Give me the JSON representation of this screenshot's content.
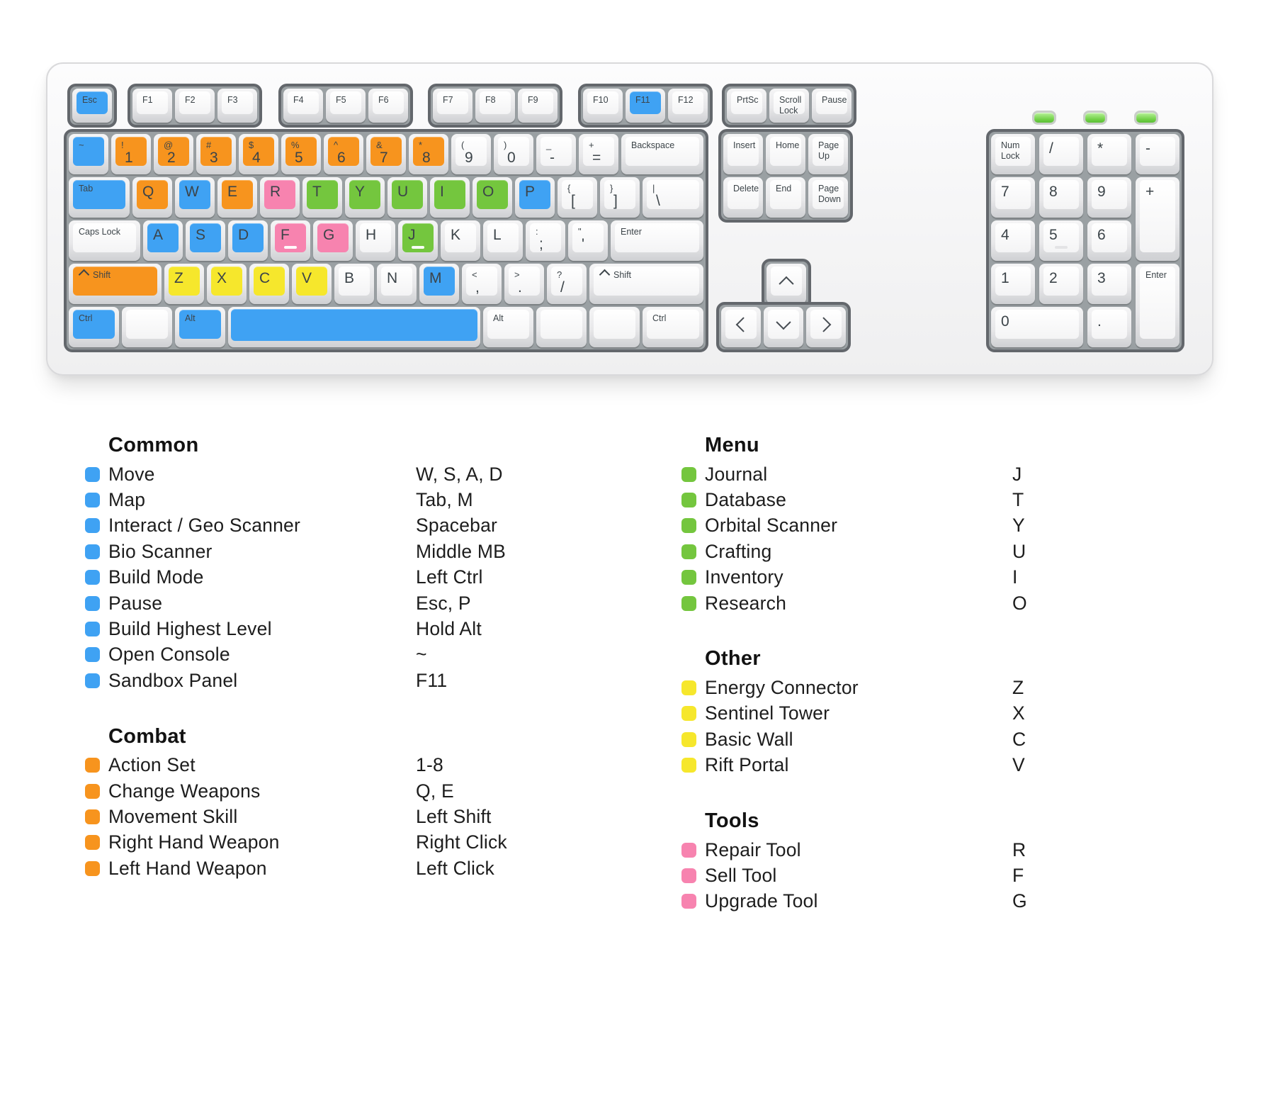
{
  "palette": {
    "common": "#3fa2f3",
    "combat": "#f7941e",
    "menu": "#74c63e",
    "other": "#f6e72c",
    "tools": "#f783af",
    "key_text": "#3c4449",
    "plate_gray": "#9aa0a3",
    "led_green": "#6fcf45"
  },
  "keyboard": {
    "leds": [
      "status-led-1",
      "status-led-2",
      "status-led-3"
    ],
    "function_groups": [
      {
        "keys": [
          {
            "p": "Esc",
            "c": "common",
            "small": true
          }
        ]
      },
      {
        "keys": [
          {
            "p": "F1",
            "small": true
          },
          {
            "p": "F2",
            "small": true
          },
          {
            "p": "F3",
            "small": true
          }
        ]
      },
      {
        "keys": [
          {
            "p": "F4",
            "small": true
          },
          {
            "p": "F5",
            "small": true
          },
          {
            "p": "F6",
            "small": true
          }
        ]
      },
      {
        "keys": [
          {
            "p": "F7",
            "small": true
          },
          {
            "p": "F8",
            "small": true
          },
          {
            "p": "F9",
            "small": true
          }
        ]
      },
      {
        "keys": [
          {
            "p": "F10",
            "small": true
          },
          {
            "p": "F11",
            "c": "common",
            "small": true
          },
          {
            "p": "F12",
            "small": true
          }
        ]
      },
      {
        "keys": [
          {
            "p": "PrtSc",
            "small": true
          },
          {
            "p": "Scroll Lock",
            "small": true
          },
          {
            "p": "Pause",
            "small": true
          }
        ]
      }
    ],
    "main_rows": [
      [
        {
          "s": "~",
          "c": "common"
        },
        {
          "s": "!",
          "p": "1",
          "c": "combat"
        },
        {
          "s": "@",
          "p": "2",
          "c": "combat"
        },
        {
          "s": "#",
          "p": "3",
          "c": "combat"
        },
        {
          "s": "$",
          "p": "4",
          "c": "combat"
        },
        {
          "s": "%",
          "p": "5",
          "c": "combat"
        },
        {
          "s": "^",
          "p": "6",
          "c": "combat"
        },
        {
          "s": "&",
          "p": "7",
          "c": "combat"
        },
        {
          "s": "*",
          "p": "8",
          "c": "combat"
        },
        {
          "s": "(",
          "p": "9"
        },
        {
          "s": ")",
          "p": "0"
        },
        {
          "s": "_",
          "p": "-"
        },
        {
          "s": "+",
          "p": "="
        },
        {
          "p": "Backspace",
          "w": 2,
          "small": true
        }
      ],
      [
        {
          "p": "Tab",
          "c": "common",
          "w": 1.5,
          "small": true
        },
        {
          "p": "Q",
          "c": "combat"
        },
        {
          "p": "W",
          "c": "common"
        },
        {
          "p": "E",
          "c": "combat"
        },
        {
          "p": "R",
          "c": "tools"
        },
        {
          "p": "T",
          "c": "menu"
        },
        {
          "p": "Y",
          "c": "menu"
        },
        {
          "p": "U",
          "c": "menu"
        },
        {
          "p": "I",
          "c": "menu"
        },
        {
          "p": "O",
          "c": "menu"
        },
        {
          "p": "P",
          "c": "common"
        },
        {
          "s": "{",
          "p": "["
        },
        {
          "s": "}",
          "p": "]"
        },
        {
          "s": "|",
          "p": "\\",
          "w": 1.5
        }
      ],
      [
        {
          "p": "Caps Lock",
          "w": 1.75,
          "small": true
        },
        {
          "p": "A",
          "c": "common"
        },
        {
          "p": "S",
          "c": "common"
        },
        {
          "p": "D",
          "c": "common"
        },
        {
          "p": "F",
          "c": "tools",
          "homing": true
        },
        {
          "p": "G",
          "c": "tools"
        },
        {
          "p": "H"
        },
        {
          "p": "J",
          "c": "menu",
          "homing": true
        },
        {
          "p": "K"
        },
        {
          "p": "L"
        },
        {
          "s": ":",
          "p": ";"
        },
        {
          "s": "\"",
          "p": "'"
        },
        {
          "p": "Enter",
          "w": 2.25,
          "small": true
        }
      ],
      [
        {
          "p": "Shift",
          "c": "combat",
          "w": 2.25,
          "small": true,
          "chev": true
        },
        {
          "p": "Z",
          "c": "other"
        },
        {
          "p": "X",
          "c": "other"
        },
        {
          "p": "C",
          "c": "other"
        },
        {
          "p": "V",
          "c": "other"
        },
        {
          "p": "B"
        },
        {
          "p": "N"
        },
        {
          "p": "M",
          "c": "common"
        },
        {
          "s": "<",
          "p": ","
        },
        {
          "s": ">",
          "p": "."
        },
        {
          "s": "?",
          "p": "/"
        },
        {
          "p": "Shift",
          "w": 2.75,
          "small": true,
          "chev": true
        }
      ],
      [
        {
          "p": "Ctrl",
          "c": "common",
          "w": 1.25,
          "small": true
        },
        {
          "w": 1.25
        },
        {
          "p": "Alt",
          "c": "common",
          "w": 1.25,
          "small": true
        },
        {
          "c": "common",
          "w": 6,
          "space": true
        },
        {
          "p": "Alt",
          "w": 1.25,
          "small": true
        },
        {
          "w": 1.25
        },
        {
          "w": 1.25
        },
        {
          "p": "Ctrl",
          "w": 1.5,
          "small": true
        }
      ]
    ],
    "nav_rows": [
      [
        {
          "p": "Insert",
          "small": true
        },
        {
          "p": "Home",
          "small": true
        },
        {
          "p": "Page Up",
          "small": true
        }
      ],
      [
        {
          "p": "Delete",
          "small": true
        },
        {
          "p": "End",
          "small": true
        },
        {
          "p": "Page Down",
          "small": true
        }
      ]
    ],
    "arrow_up": [
      {
        "arrow": "up"
      }
    ],
    "arrow_row": [
      {
        "arrow": "left"
      },
      {
        "arrow": "down"
      },
      {
        "arrow": "right"
      }
    ],
    "numpad": [
      {
        "p": "Num Lock",
        "small": true
      },
      {
        "p": "/"
      },
      {
        "p": "*"
      },
      {
        "p": "-"
      },
      {
        "p": "7"
      },
      {
        "p": "8"
      },
      {
        "p": "9"
      },
      {
        "p": "+",
        "rs": 2
      },
      {
        "p": "4"
      },
      {
        "p": "5",
        "homing": true
      },
      {
        "p": "6"
      },
      {
        "p": "1"
      },
      {
        "p": "2"
      },
      {
        "p": "3"
      },
      {
        "p": "Enter",
        "small": true,
        "rs": 2
      },
      {
        "p": "0",
        "cs": 2
      },
      {
        "p": "."
      }
    ]
  },
  "legend": {
    "left": [
      {
        "title": "Common",
        "color": "common",
        "items": [
          {
            "label": "Move",
            "keys": "W, S, A, D"
          },
          {
            "label": "Map",
            "keys": "Tab, M"
          },
          {
            "label": "Interact / Geo Scanner",
            "keys": "Spacebar"
          },
          {
            "label": "Bio Scanner",
            "keys": "Middle MB"
          },
          {
            "label": "Build Mode",
            "keys": "Left Ctrl"
          },
          {
            "label": "Pause",
            "keys": "Esc, P"
          },
          {
            "label": "Build Highest Level",
            "keys": "Hold Alt"
          },
          {
            "label": "Open Console",
            "keys": "~"
          },
          {
            "label": "Sandbox Panel",
            "keys": "F11"
          }
        ]
      },
      {
        "title": "Combat",
        "color": "combat",
        "items": [
          {
            "label": "Action Set",
            "keys": "1-8"
          },
          {
            "label": "Change Weapons",
            "keys": "Q, E"
          },
          {
            "label": "Movement Skill",
            "keys": "Left Shift"
          },
          {
            "label": "Right Hand Weapon",
            "keys": "Right Click"
          },
          {
            "label": "Left Hand Weapon",
            "keys": "Left Click"
          }
        ]
      }
    ],
    "right": [
      {
        "title": "Menu",
        "color": "menu",
        "items": [
          {
            "label": "Journal",
            "keys": "J"
          },
          {
            "label": "Database",
            "keys": "T"
          },
          {
            "label": "Orbital Scanner",
            "keys": "Y"
          },
          {
            "label": "Crafting",
            "keys": "U"
          },
          {
            "label": "Inventory",
            "keys": "I"
          },
          {
            "label": "Research",
            "keys": "O"
          }
        ]
      },
      {
        "title": "Other",
        "color": "other",
        "items": [
          {
            "label": "Energy Connector",
            "keys": "Z"
          },
          {
            "label": "Sentinel Tower",
            "keys": "X"
          },
          {
            "label": "Basic Wall",
            "keys": "C"
          },
          {
            "label": "Rift Portal",
            "keys": "V"
          }
        ]
      },
      {
        "title": "Tools",
        "color": "tools",
        "items": [
          {
            "label": "Repair Tool",
            "keys": "R"
          },
          {
            "label": "Sell Tool",
            "keys": "F"
          },
          {
            "label": "Upgrade Tool",
            "keys": "G"
          }
        ]
      }
    ]
  }
}
